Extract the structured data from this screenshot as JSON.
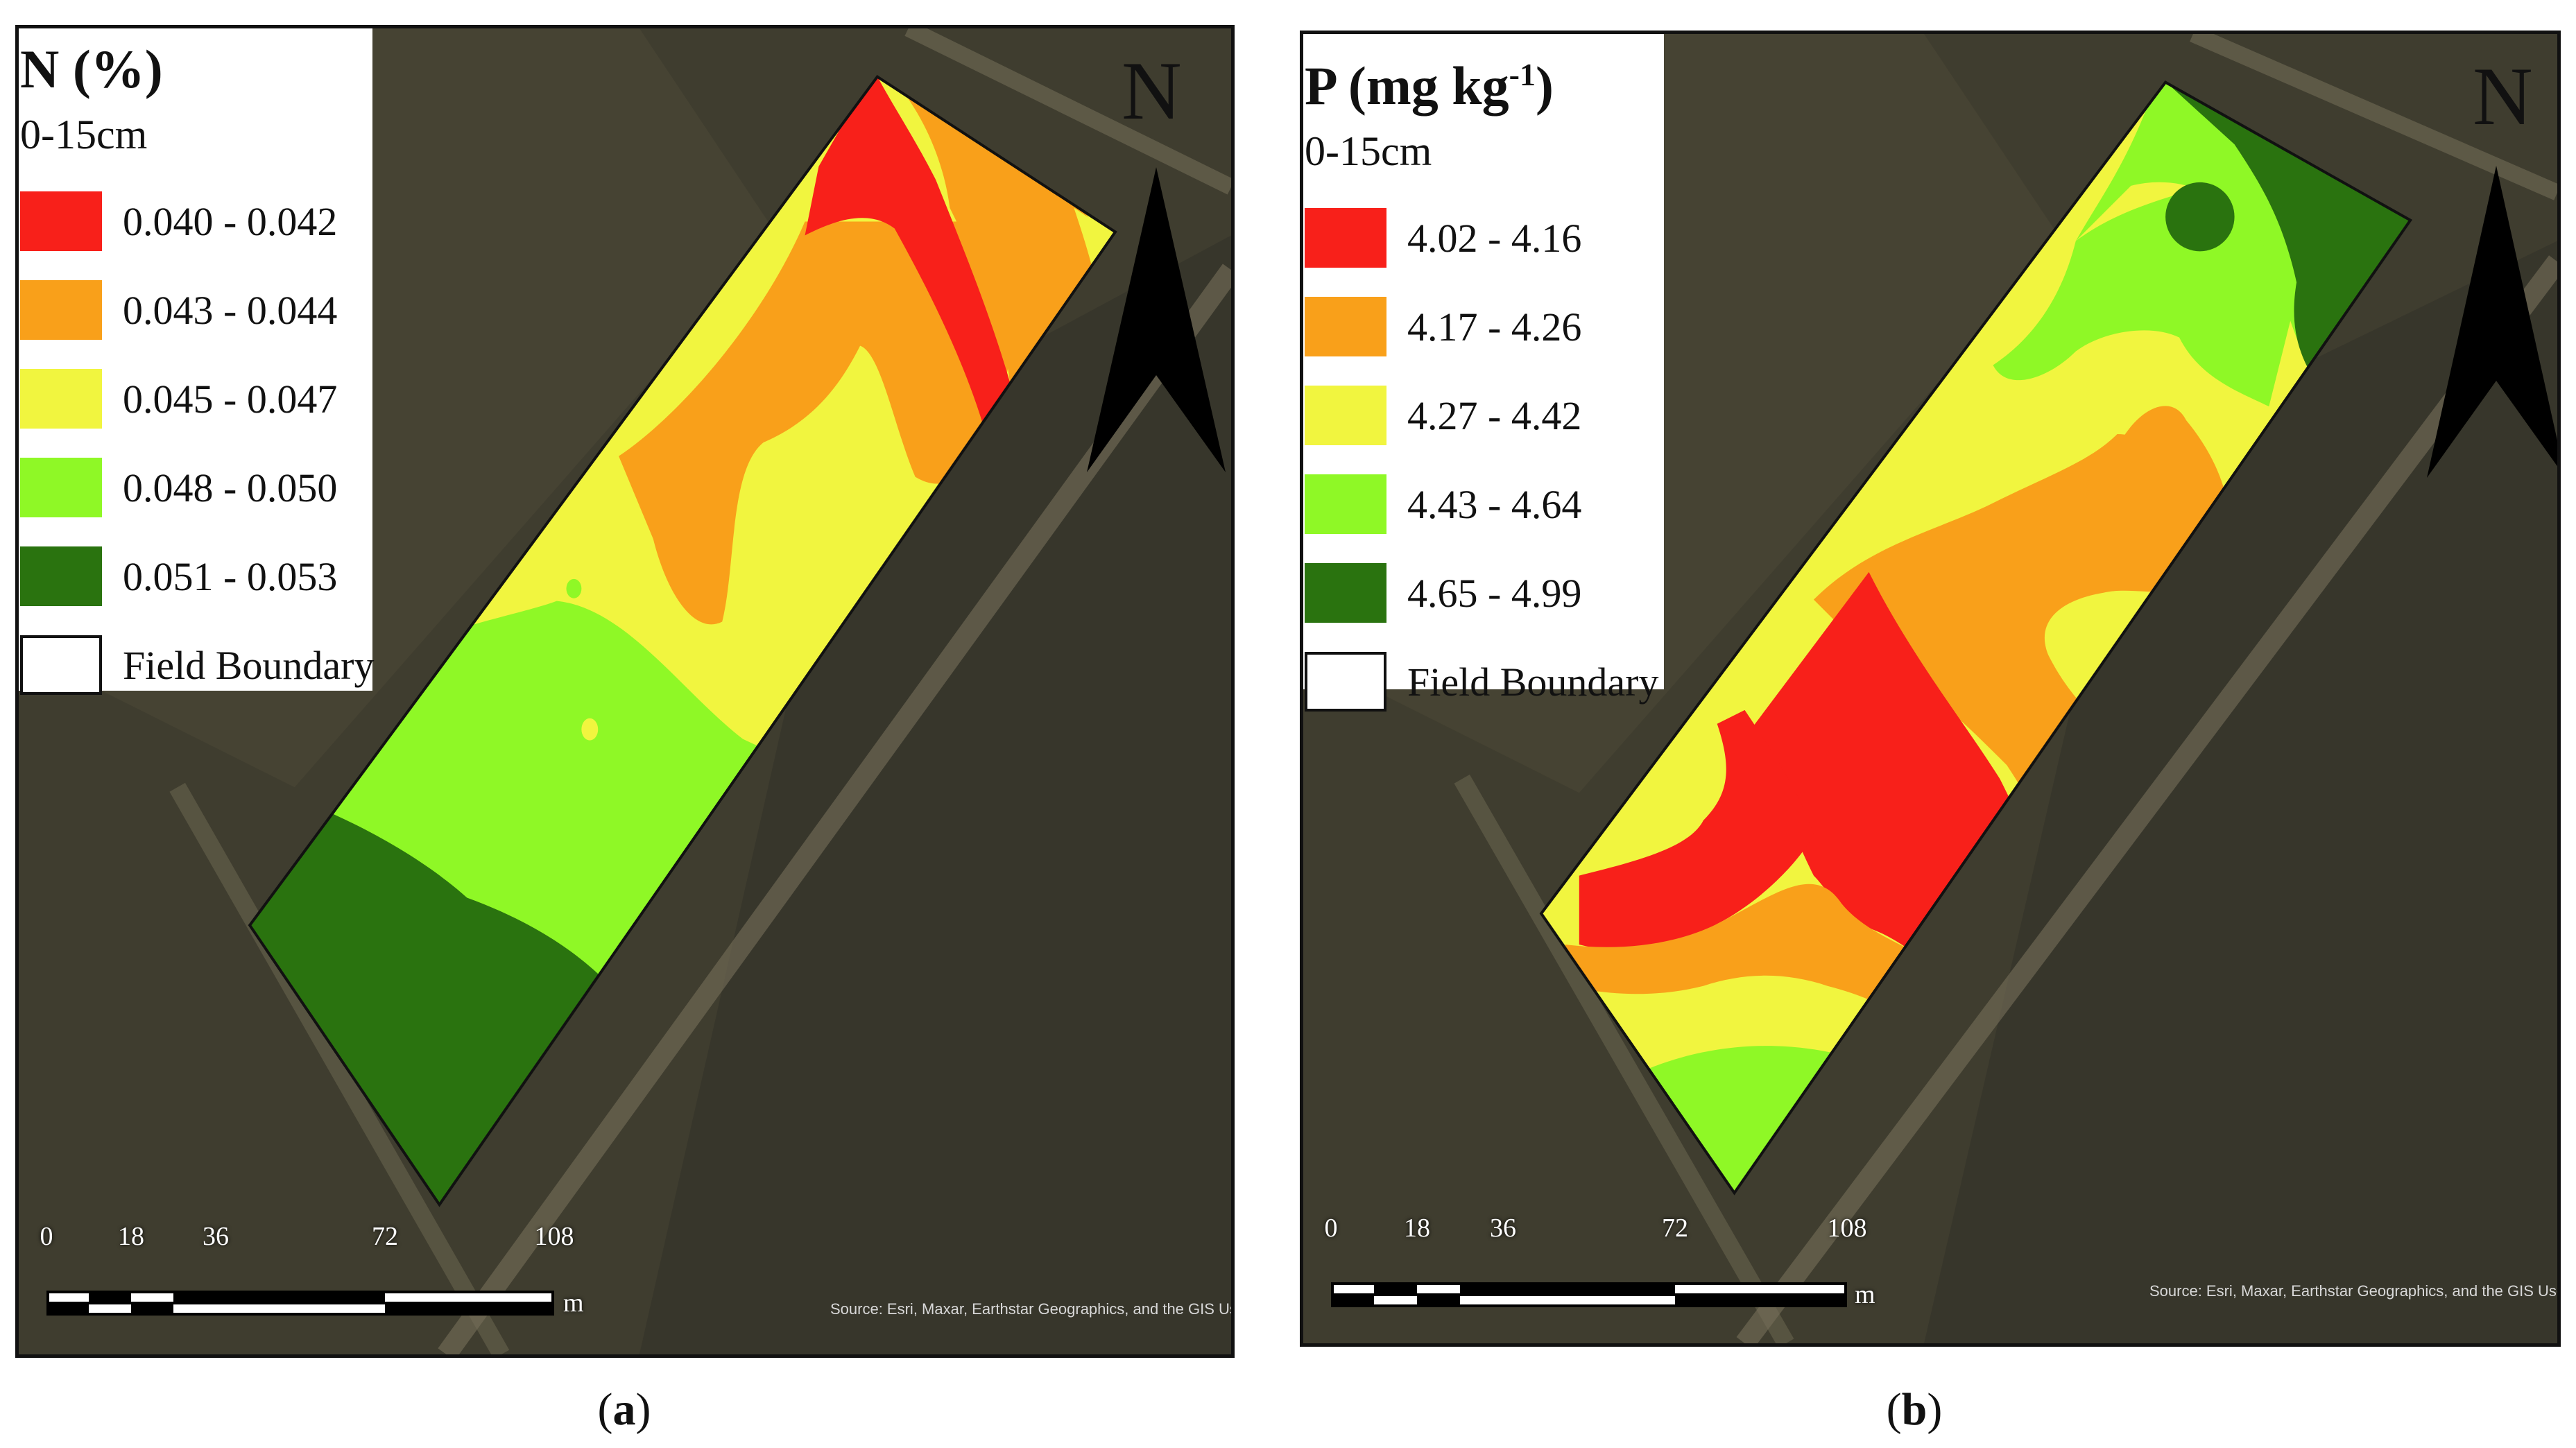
{
  "colors": {
    "red": "#f8201a",
    "orange": "#f9a01a",
    "yellow": "#f1f53f",
    "lightgreen": "#8ff826",
    "darkgreen": "#2a730f",
    "imagery": "#3d3b2d",
    "north_arrow": "#000000"
  },
  "maps": [
    {
      "panel_id": "a",
      "caption_open": "(",
      "caption_letter": "a",
      "caption_close": ")",
      "legend": {
        "title": "N (%)",
        "depth": "0-15cm",
        "classes": [
          {
            "label": "0.040 - 0.042",
            "color": "#f8201a"
          },
          {
            "label": "0.043 - 0.044",
            "color": "#f9a01a"
          },
          {
            "label": "0.045 - 0.047",
            "color": "#f1f53f"
          },
          {
            "label": "0.048 - 0.050",
            "color": "#8ff826"
          },
          {
            "label": "0.051 - 0.053",
            "color": "#2a730f"
          }
        ],
        "boundary_label": "Field Boundary"
      },
      "north_label": "N",
      "scale": {
        "ticks": [
          "0",
          "18",
          "36",
          "72",
          "108"
        ],
        "tick_values": [
          0,
          18,
          36,
          72,
          108
        ],
        "unit": "m"
      },
      "attribution": "Source: Esri, Maxar, Earthstar Geographics, and the GIS User Community"
    },
    {
      "panel_id": "b",
      "caption_open": "(",
      "caption_letter": "b",
      "caption_close": ")",
      "legend": {
        "title_main": "P (mg kg",
        "title_sup": "-1",
        "title_end": ")",
        "depth": "0-15cm",
        "classes": [
          {
            "label": "4.02 - 4.16",
            "color": "#f8201a"
          },
          {
            "label": "4.17 - 4.26",
            "color": "#f9a01a"
          },
          {
            "label": "4.27 - 4.42",
            "color": "#f1f53f"
          },
          {
            "label": "4.43 - 4.64",
            "color": "#8ff826"
          },
          {
            "label": "4.65 - 4.99",
            "color": "#2a730f"
          }
        ],
        "boundary_label": "Field Boundary"
      },
      "north_label": "N",
      "scale": {
        "ticks": [
          "0",
          "18",
          "36",
          "72",
          "108"
        ],
        "tick_values": [
          0,
          18,
          36,
          72,
          108
        ],
        "unit": "m"
      },
      "attribution": "Source: Esri, Maxar, Earthstar Geographics, and the GIS User Community"
    }
  ]
}
